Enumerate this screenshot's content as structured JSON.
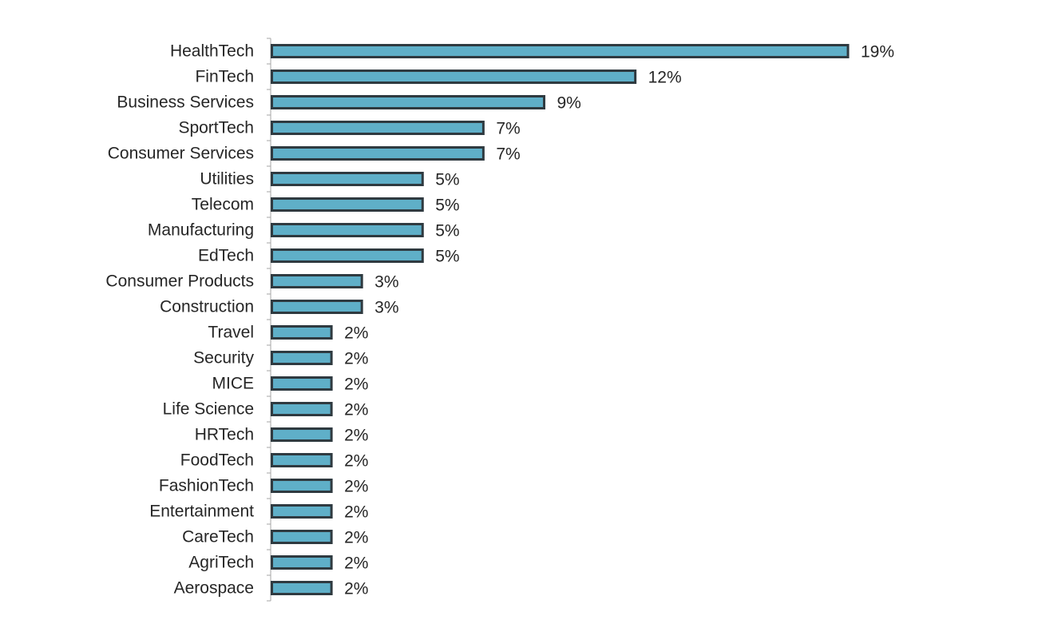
{
  "chart_data": {
    "type": "bar",
    "orientation": "horizontal",
    "title": "",
    "xlabel": "",
    "ylabel": "",
    "categories": [
      "HealthTech",
      "FinTech",
      "Business Services",
      "SportTech",
      "Consumer Services",
      "Utilities",
      "Telecom",
      "Manufacturing",
      "EdTech",
      "Consumer Products",
      "Construction",
      "Travel",
      "Security",
      "MICE",
      "Life Science",
      "HRTech",
      "FoodTech",
      "FashionTech",
      "Entertainment",
      "CareTech",
      "AgriTech",
      "Aerospace"
    ],
    "values": [
      19,
      12,
      9,
      7,
      7,
      5,
      5,
      5,
      5,
      3,
      3,
      2,
      2,
      2,
      2,
      2,
      2,
      2,
      2,
      2,
      2,
      2
    ],
    "value_labels": [
      "19%",
      "12%",
      "9%",
      "7%",
      "7%",
      "5%",
      "5%",
      "5%",
      "5%",
      "3%",
      "3%",
      "2%",
      "2%",
      "2%",
      "2%",
      "2%",
      "2%",
      "2%",
      "2%",
      "2%",
      "2%",
      "2%"
    ],
    "unit": "%",
    "xlim": [
      0,
      19
    ],
    "grid": false,
    "legend": "none",
    "bar_fill": "#5FAFC8",
    "bar_stroke": "#2F3A40",
    "axis_color": "#A6A6A6",
    "text_color": "#262626"
  }
}
